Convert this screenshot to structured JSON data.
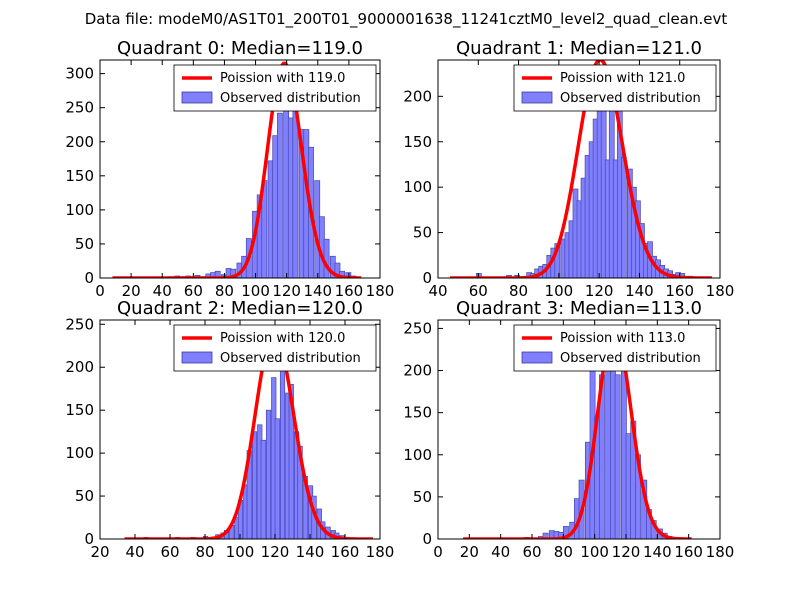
{
  "suptitle": "Data file: modeM0/AS1T01_200T01_9000001638_11241cztM0_level2_quad_clean.evt",
  "colors": {
    "poisson": "#ff0000",
    "bar_fill": "#8080ff",
    "bar_edge": "#3a3aa0"
  },
  "chart_data": [
    {
      "type": "bar",
      "title": "Quadrant 0: Median=119.0",
      "xlim": [
        0,
        180
      ],
      "ylim": [
        0,
        320
      ],
      "xticks": [
        "0",
        "20",
        "40",
        "60",
        "80",
        "100",
        "120",
        "140",
        "160",
        "180"
      ],
      "yticks": [
        "0",
        "50",
        "100",
        "150",
        "200",
        "250",
        "300"
      ],
      "legend": [
        "Poission with 119.0",
        "Observed distribution"
      ],
      "legend_loc": "upper-right",
      "bin_width": 3.3,
      "bins": [
        [
          44,
          2
        ],
        [
          48,
          3
        ],
        [
          51,
          2
        ],
        [
          55,
          3
        ],
        [
          58,
          2
        ],
        [
          61,
          4
        ],
        [
          65,
          2
        ],
        [
          68,
          6
        ],
        [
          71,
          8
        ],
        [
          74,
          10
        ],
        [
          78,
          5
        ],
        [
          81,
          14
        ],
        [
          84,
          13
        ],
        [
          88,
          22
        ],
        [
          91,
          32
        ],
        [
          94,
          58
        ],
        [
          98,
          98
        ],
        [
          101,
          122
        ],
        [
          104,
          143
        ],
        [
          108,
          172
        ],
        [
          111,
          209
        ],
        [
          114,
          242
        ],
        [
          118,
          262
        ],
        [
          121,
          235
        ],
        [
          124,
          252
        ],
        [
          128,
          218
        ],
        [
          131,
          218
        ],
        [
          134,
          192
        ],
        [
          138,
          143
        ],
        [
          141,
          90
        ],
        [
          144,
          57
        ],
        [
          148,
          32
        ],
        [
          151,
          22
        ],
        [
          154,
          10
        ],
        [
          158,
          8
        ],
        [
          161,
          3
        ]
      ],
      "poisson": {
        "mean": 119.0,
        "scale": 315,
        "range": [
          8,
          168
        ]
      }
    },
    {
      "type": "bar",
      "title": "Quadrant 1: Median=121.0",
      "xlim": [
        40,
        180
      ],
      "ylim": [
        0,
        240
      ],
      "xticks": [
        "40",
        "60",
        "80",
        "100",
        "120",
        "140",
        "160",
        "180"
      ],
      "yticks": [
        "0",
        "50",
        "100",
        "150",
        "200"
      ],
      "legend": [
        "Poission with 121.0",
        "Observed distribution"
      ],
      "legend_loc": "upper-right",
      "bin_width": 2.5,
      "bins": [
        [
          59,
          5
        ],
        [
          74,
          3
        ],
        [
          78,
          3
        ],
        [
          84,
          6
        ],
        [
          86,
          5
        ],
        [
          88,
          10
        ],
        [
          90,
          13
        ],
        [
          92,
          15
        ],
        [
          94,
          25
        ],
        [
          96,
          33
        ],
        [
          98,
          38
        ],
        [
          101,
          43
        ],
        [
          103,
          50
        ],
        [
          105,
          63
        ],
        [
          107,
          98
        ],
        [
          109,
          85
        ],
        [
          111,
          110
        ],
        [
          113,
          135
        ],
        [
          115,
          150
        ],
        [
          117,
          175
        ],
        [
          119,
          215
        ],
        [
          121,
          188
        ],
        [
          123,
          130
        ],
        [
          125,
          220
        ],
        [
          127,
          130
        ],
        [
          129,
          185
        ],
        [
          131,
          133
        ],
        [
          134,
          120
        ],
        [
          136,
          100
        ],
        [
          138,
          85
        ],
        [
          140,
          60
        ],
        [
          142,
          38
        ],
        [
          144,
          40
        ],
        [
          146,
          24
        ],
        [
          148,
          20
        ],
        [
          150,
          14
        ],
        [
          152,
          10
        ],
        [
          154,
          8
        ],
        [
          156,
          4
        ],
        [
          158,
          6
        ],
        [
          160,
          5
        ],
        [
          162,
          2
        ],
        [
          164,
          2
        ]
      ],
      "poisson": {
        "mean": 121.0,
        "scale": 240,
        "range": [
          46,
          176
        ]
      }
    },
    {
      "type": "bar",
      "title": "Quadrant 2: Median=120.0",
      "xlim": [
        20,
        180
      ],
      "ylim": [
        0,
        255
      ],
      "xticks": [
        "20",
        "40",
        "60",
        "80",
        "100",
        "120",
        "140",
        "160",
        "180"
      ],
      "yticks": [
        "0",
        "50",
        "100",
        "150",
        "200",
        "250"
      ],
      "legend": [
        "Poission with 120.0",
        "Observed distribution"
      ],
      "legend_loc": "upper-right",
      "bin_width": 2.6,
      "bins": [
        [
          45,
          2
        ],
        [
          63,
          2
        ],
        [
          72,
          2
        ],
        [
          79,
          3
        ],
        [
          86,
          5
        ],
        [
          89,
          7
        ],
        [
          91,
          10
        ],
        [
          94,
          16
        ],
        [
          97,
          25
        ],
        [
          99,
          45
        ],
        [
          102,
          63
        ],
        [
          104,
          103
        ],
        [
          107,
          125
        ],
        [
          110,
          133
        ],
        [
          112,
          115
        ],
        [
          115,
          150
        ],
        [
          118,
          188
        ],
        [
          120,
          140
        ],
        [
          123,
          198
        ],
        [
          126,
          170
        ],
        [
          128,
          180
        ],
        [
          131,
          125
        ],
        [
          133,
          108
        ],
        [
          136,
          73
        ],
        [
          139,
          62
        ],
        [
          141,
          50
        ],
        [
          144,
          35
        ],
        [
          146,
          20
        ],
        [
          149,
          14
        ],
        [
          152,
          10
        ],
        [
          154,
          7
        ],
        [
          157,
          4
        ],
        [
          160,
          2
        ]
      ],
      "poisson": {
        "mean": 120.0,
        "scale": 240,
        "range": [
          34,
          176
        ]
      }
    },
    {
      "type": "bar",
      "title": "Quadrant 3: Median=113.0",
      "xlim": [
        0,
        180
      ],
      "ylim": [
        0,
        260
      ],
      "xticks": [
        "0",
        "20",
        "40",
        "60",
        "80",
        "100",
        "120",
        "140",
        "160",
        "180"
      ],
      "yticks": [
        "0",
        "50",
        "100",
        "150",
        "200",
        "250"
      ],
      "legend": [
        "Poission with 113.0",
        "Observed distribution"
      ],
      "legend_loc": "upper-right",
      "bin_width": 3.3,
      "bins": [
        [
          55,
          2
        ],
        [
          64,
          3
        ],
        [
          67,
          7
        ],
        [
          71,
          10
        ],
        [
          74,
          9
        ],
        [
          77,
          8
        ],
        [
          80,
          15
        ],
        [
          84,
          20
        ],
        [
          87,
          48
        ],
        [
          90,
          70
        ],
        [
          94,
          115
        ],
        [
          97,
          200
        ],
        [
          100,
          145
        ],
        [
          103,
          195
        ],
        [
          107,
          222
        ],
        [
          110,
          250
        ],
        [
          113,
          195
        ],
        [
          117,
          230
        ],
        [
          120,
          125
        ],
        [
          123,
          140
        ],
        [
          126,
          100
        ],
        [
          130,
          70
        ],
        [
          133,
          35
        ],
        [
          136,
          22
        ],
        [
          140,
          12
        ],
        [
          143,
          7
        ],
        [
          146,
          3
        ],
        [
          150,
          2
        ]
      ],
      "poisson": {
        "mean": 113.0,
        "scale": 250,
        "range": [
          16,
          162
        ]
      }
    }
  ]
}
